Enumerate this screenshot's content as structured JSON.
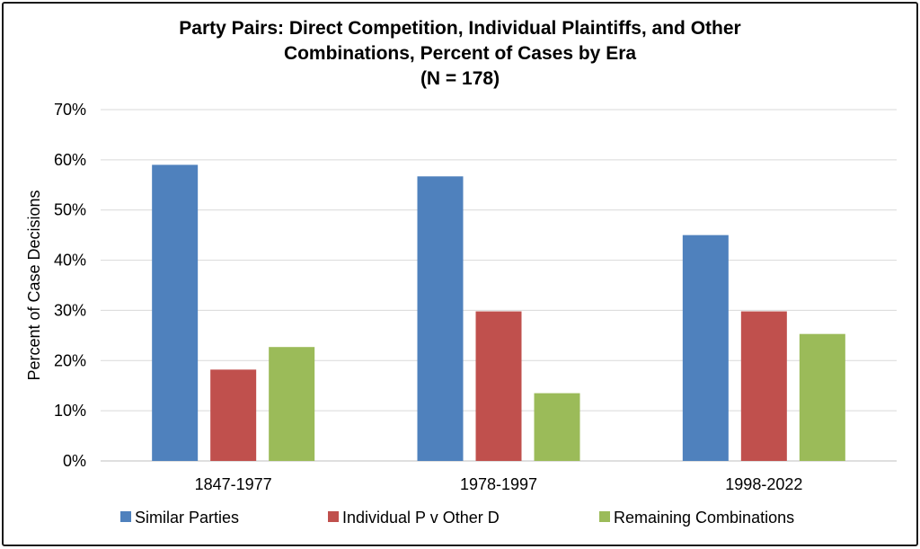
{
  "chart_data": {
    "type": "bar",
    "title_lines": [
      "Party Pairs: Direct Competition, Individual Plaintiffs, and Other",
      "Combinations, Percent of Cases by Era",
      "(N = 178)"
    ],
    "xlabel": "",
    "ylabel": "Percent of Case Decisions",
    "categories": [
      "1847-1977",
      "1978-1997",
      "1998-2022"
    ],
    "series": [
      {
        "name": "Similar Parties",
        "values": [
          59,
          56.7,
          45
        ],
        "color": "#4f81bd"
      },
      {
        "name": "Individual P v Other D",
        "values": [
          18.2,
          29.8,
          29.8
        ],
        "color": "#c0504d"
      },
      {
        "name": "Remaining Combinations",
        "values": [
          22.7,
          13.5,
          25.3
        ],
        "color": "#9bbb59"
      }
    ],
    "ylim": [
      0,
      70
    ],
    "ytick_step": 10,
    "ytick_labels": [
      "0%",
      "10%",
      "20%",
      "30%",
      "40%",
      "50%",
      "60%",
      "70%"
    ],
    "grid": true,
    "legend_position": "bottom"
  }
}
